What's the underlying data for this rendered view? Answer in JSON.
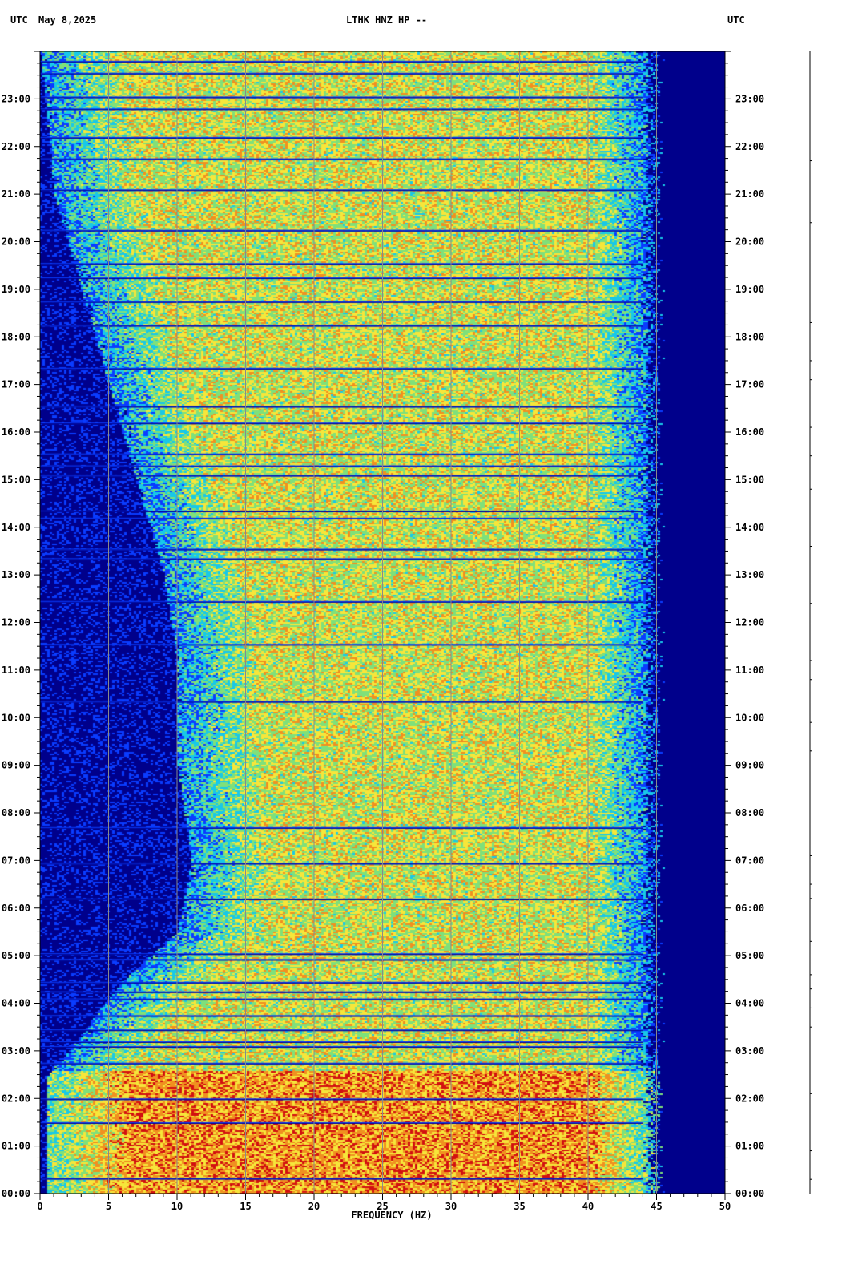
{
  "header": {
    "left_tz": "UTC",
    "date": "May 8,2025",
    "station": "LTHK HNZ HP --",
    "right_tz": "UTC"
  },
  "colors": {
    "deep_blue": "#00008b",
    "blue": "#0a3cff",
    "cyan": "#18c8e8",
    "green": "#7fe07a",
    "yellow": "#f6e63a",
    "orange": "#f09020",
    "red": "#d21010",
    "gridline": "#8a8a8a"
  },
  "chart_data": {
    "type": "heatmap",
    "title": "LTHK HNZ HP --",
    "xlabel": "FREQUENCY (HZ)",
    "ylabel": "UTC",
    "xlim": [
      0,
      50
    ],
    "ylim": [
      "00:00",
      "24:00"
    ],
    "x_ticks": [
      "0",
      "5",
      "10",
      "15",
      "20",
      "25",
      "30",
      "35",
      "40",
      "45",
      "50"
    ],
    "y_ticks": [
      "00:00",
      "01:00",
      "02:00",
      "03:00",
      "04:00",
      "05:00",
      "06:00",
      "07:00",
      "08:00",
      "09:00",
      "10:00",
      "11:00",
      "12:00",
      "13:00",
      "14:00",
      "15:00",
      "16:00",
      "17:00",
      "18:00",
      "19:00",
      "20:00",
      "21:00",
      "22:00",
      "23:00"
    ],
    "grid": true,
    "colormap": [
      "deep_blue",
      "blue",
      "cyan",
      "green",
      "yellow",
      "orange",
      "red"
    ],
    "energy_cutoff_hz": 44,
    "low_frequency_quiet_band": [
      {
        "hour": 0,
        "upper_hz": 0.5
      },
      {
        "hour": 2.5,
        "upper_hz": 0.5
      },
      {
        "hour": 3,
        "upper_hz": 2
      },
      {
        "hour": 4.5,
        "upper_hz": 6
      },
      {
        "hour": 5.5,
        "upper_hz": 10
      },
      {
        "hour": 7,
        "upper_hz": 11
      },
      {
        "hour": 9,
        "upper_hz": 10
      },
      {
        "hour": 11,
        "upper_hz": 10
      },
      {
        "hour": 13,
        "upper_hz": 9
      },
      {
        "hour": 15,
        "upper_hz": 7
      },
      {
        "hour": 17,
        "upper_hz": 5
      },
      {
        "hour": 19,
        "upper_hz": 3
      },
      {
        "hour": 21,
        "upper_hz": 1
      },
      {
        "hour": 24,
        "upper_hz": 0
      }
    ],
    "dark_gap_hours": [
      0.33,
      1.5,
      2.0,
      2.75,
      3.1,
      3.2,
      3.45,
      3.75,
      4.1,
      4.25,
      4.45,
      4.93,
      5.05,
      6.2,
      6.95,
      7.7,
      10.35,
      11.55,
      12.45,
      13.35,
      13.55,
      14.2,
      14.35,
      15.1,
      15.3,
      15.55,
      16.2,
      16.55,
      17.35,
      18.25,
      18.75,
      19.25,
      19.55,
      20.25,
      21.1,
      21.75,
      22.2,
      22.8,
      23.05,
      23.55,
      23.8
    ]
  }
}
